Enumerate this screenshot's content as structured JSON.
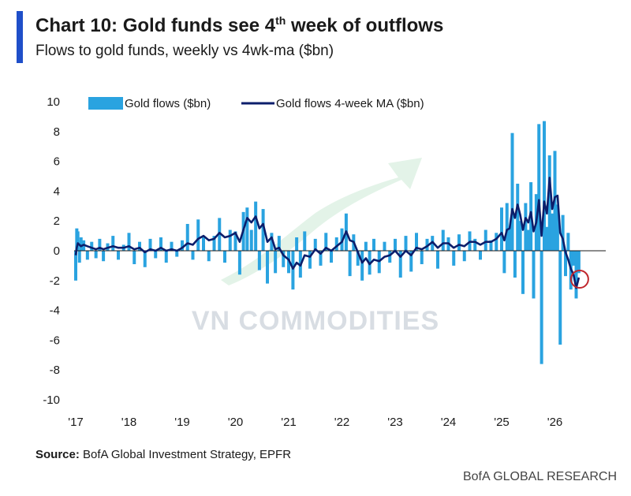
{
  "header": {
    "title_main": "Chart 10: Gold funds see 4",
    "title_sup": "th",
    "title_end": " week of outflows",
    "subtitle": "Flows to gold funds, weekly vs 4wk-ma ($bn)"
  },
  "footer": {
    "source_label": "Source:",
    "source_text": " BofA Global Investment Strategy, EPFR",
    "brand": "BofA GLOBAL RESEARCH"
  },
  "watermark": {
    "text": "VN COMMODITIES"
  },
  "colors": {
    "accent": "#1f4fc9",
    "bars": "#2aa3e0",
    "ma_line": "#0c1e6b",
    "highlight_circle": "#c0272d"
  },
  "chart_data": {
    "type": "bar",
    "xlabel": "",
    "ylabel": "",
    "ylim": [
      -10,
      10
    ],
    "y_ticks": [
      "10",
      "8",
      "6",
      "4",
      "2",
      "0",
      "-2",
      "-4",
      "-6",
      "-8",
      "-10"
    ],
    "x_ticks": [
      "'17",
      "'18",
      "'19",
      "'20",
      "'21",
      "'22",
      "'23",
      "'24",
      "'25",
      "'26"
    ],
    "legend_position": "top-left",
    "grid": false,
    "series": [
      {
        "name": "Gold flows ($bn)",
        "kind": "bar",
        "x": [
          2017.0,
          2017.02,
          2017.04,
          2017.07,
          2017.1,
          2017.15,
          2017.22,
          2017.3,
          2017.38,
          2017.45,
          2017.52,
          2017.6,
          2017.7,
          2017.8,
          2017.9,
          2018.0,
          2018.1,
          2018.2,
          2018.3,
          2018.4,
          2018.5,
          2018.6,
          2018.7,
          2018.8,
          2018.9,
          2019.0,
          2019.1,
          2019.2,
          2019.3,
          2019.4,
          2019.5,
          2019.6,
          2019.7,
          2019.8,
          2019.9,
          2020.0,
          2020.08,
          2020.15,
          2020.22,
          2020.3,
          2020.38,
          2020.45,
          2020.52,
          2020.6,
          2020.68,
          2020.75,
          2020.82,
          2020.9,
          2021.0,
          2021.08,
          2021.15,
          2021.22,
          2021.3,
          2021.4,
          2021.5,
          2021.6,
          2021.7,
          2021.8,
          2021.9,
          2022.0,
          2022.08,
          2022.15,
          2022.22,
          2022.3,
          2022.38,
          2022.45,
          2022.52,
          2022.6,
          2022.7,
          2022.8,
          2022.9,
          2023.0,
          2023.1,
          2023.2,
          2023.3,
          2023.4,
          2023.5,
          2023.6,
          2023.7,
          2023.8,
          2023.9,
          2024.0,
          2024.1,
          2024.2,
          2024.3,
          2024.4,
          2024.5,
          2024.6,
          2024.7,
          2024.8,
          2024.9,
          2025.0,
          2025.05,
          2025.1,
          2025.15,
          2025.2,
          2025.25,
          2025.3,
          2025.35,
          2025.4,
          2025.45,
          2025.5,
          2025.55,
          2025.6,
          2025.65,
          2025.7,
          2025.75,
          2025.8,
          2025.85,
          2025.9,
          2025.95,
          2026.0,
          2026.05,
          2026.1,
          2026.15,
          2026.2,
          2026.25,
          2026.3,
          2026.35,
          2026.4,
          2026.45
        ],
        "values": [
          -2.0,
          1.5,
          1.3,
          -0.8,
          0.9,
          0.7,
          -0.6,
          0.6,
          -0.5,
          0.8,
          -0.7,
          0.5,
          1.0,
          -0.6,
          0.4,
          1.2,
          -0.9,
          0.6,
          -1.1,
          0.8,
          -0.5,
          0.9,
          -0.8,
          0.6,
          -0.4,
          0.7,
          1.8,
          -0.6,
          2.1,
          0.9,
          -0.7,
          1.0,
          2.2,
          -0.8,
          1.4,
          1.3,
          -1.6,
          2.6,
          2.9,
          1.4,
          3.3,
          -1.3,
          2.8,
          -2.2,
          1.2,
          -1.5,
          1.0,
          -1.1,
          -1.5,
          -2.6,
          0.9,
          -1.8,
          1.3,
          -1.2,
          0.8,
          -1.0,
          1.2,
          -0.8,
          0.9,
          1.5,
          2.5,
          -1.7,
          1.1,
          -1.0,
          -2.0,
          0.6,
          -1.6,
          0.8,
          -1.5,
          0.6,
          -0.8,
          0.8,
          -1.8,
          1.0,
          -1.4,
          1.2,
          -0.9,
          0.8,
          1.0,
          -1.2,
          1.4,
          0.9,
          -1.0,
          1.1,
          -0.7,
          1.3,
          0.8,
          -0.6,
          1.4,
          0.7,
          1.2,
          2.9,
          -1.5,
          3.2,
          1.5,
          7.9,
          -1.8,
          4.5,
          2.0,
          -2.9,
          3.2,
          1.4,
          4.6,
          -3.2,
          3.8,
          8.5,
          -7.6,
          8.7,
          1.6,
          6.4,
          2.5,
          6.7,
          3.1,
          -6.3,
          2.4,
          -1.7,
          1.2,
          -2.6,
          -1.0,
          -3.2,
          -1.5
        ],
        "ma": [
          -0.3,
          0.2,
          0.5,
          0.4,
          0.3,
          0.4,
          0.3,
          0.2,
          0.1,
          0.2,
          0.1,
          0.2,
          0.3,
          0.2,
          0.2,
          0.3,
          0.1,
          0.2,
          -0.1,
          0.1,
          0.0,
          0.2,
          0.0,
          0.1,
          0.0,
          0.2,
          0.5,
          0.4,
          0.8,
          1.0,
          0.7,
          0.8,
          1.2,
          0.9,
          1.0,
          1.2,
          0.6,
          1.4,
          2.2,
          1.9,
          2.3,
          1.5,
          1.8,
          0.6,
          0.9,
          0.1,
          0.2,
          -0.3,
          -0.6,
          -1.2,
          -0.8,
          -1.0,
          -0.3,
          -0.4,
          0.1,
          -0.2,
          0.2,
          0.0,
          0.3,
          0.6,
          1.3,
          0.7,
          0.6,
          -0.1,
          -0.8,
          -0.5,
          -0.9,
          -0.6,
          -0.7,
          -0.4,
          -0.3,
          0.0,
          -0.4,
          0.0,
          -0.3,
          0.2,
          0.1,
          0.3,
          0.6,
          0.2,
          0.5,
          0.5,
          0.2,
          0.4,
          0.3,
          0.6,
          0.6,
          0.4,
          0.6,
          0.6,
          0.8,
          1.2,
          0.7,
          1.4,
          1.5,
          2.8,
          2.2,
          3.1,
          2.4,
          1.4,
          2.2,
          1.9,
          2.6,
          1.3,
          1.9,
          3.4,
          1.0,
          3.3,
          2.5,
          4.9,
          2.8,
          3.6,
          3.7,
          1.2,
          0.8,
          -0.1,
          -0.6,
          -1.2,
          -1.6,
          -2.5,
          -1.8
        ]
      },
      {
        "name": "Gold flows 4-week MA ($bn)",
        "kind": "line"
      }
    ]
  }
}
